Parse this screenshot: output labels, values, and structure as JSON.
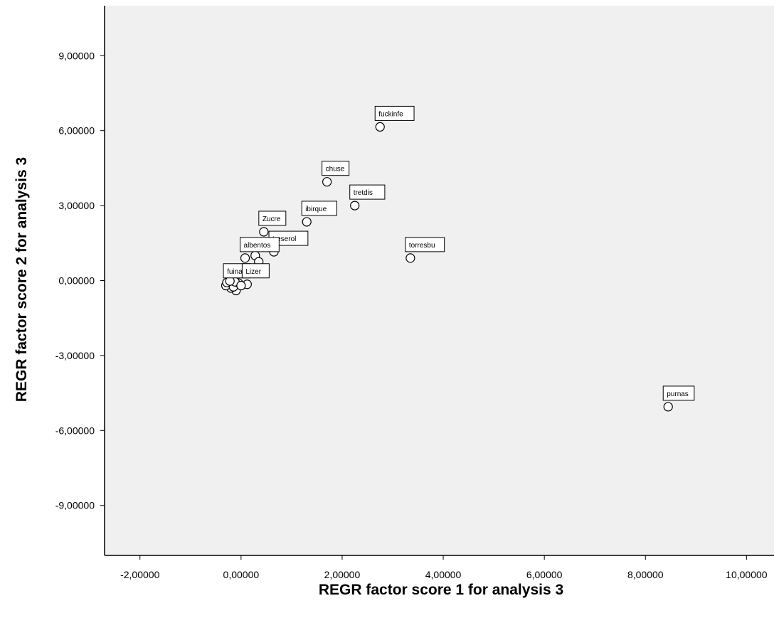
{
  "chart_data": {
    "type": "scatter",
    "xlabel": "REGR factor score   1 for analysis 3",
    "ylabel": "REGR factor score   2 for analysis 3",
    "xlim": [
      -2.7,
      10.6
    ],
    "ylim": [
      -11,
      11
    ],
    "x_ticks": [
      -2,
      0,
      2,
      4,
      6,
      8,
      10
    ],
    "x_tick_labels": [
      "-2,00000",
      "0,00000",
      "2,00000",
      "4,00000",
      "6,00000",
      "8,00000",
      "10,00000"
    ],
    "y_ticks": [
      9,
      6,
      3,
      0,
      -3,
      -6,
      -9
    ],
    "y_tick_labels": [
      "9,00000",
      "6,00000",
      "3,00000",
      "0,00000",
      "-3,00000",
      "-6,00000",
      "-9,00000"
    ],
    "grid": false,
    "plot_background": "#f0f0f0",
    "marker_color": "#000000",
    "points": [
      {
        "x": 2.75,
        "y": 6.15,
        "label": "fuckinfe"
      },
      {
        "x": 1.7,
        "y": 3.95,
        "label": "chuse"
      },
      {
        "x": 2.25,
        "y": 3.0,
        "label": "tretdis"
      },
      {
        "x": 1.3,
        "y": 2.35,
        "label": "ibirque"
      },
      {
        "x": 0.45,
        "y": 1.95,
        "label": "Zucre"
      },
      {
        "x": 3.35,
        "y": 0.9,
        "label": "torresbu"
      },
      {
        "x": 0.65,
        "y": 1.15,
        "label": "treserol"
      },
      {
        "x": 0.08,
        "y": 0.9,
        "label": "albentos"
      },
      {
        "x": -0.25,
        "y": -0.15,
        "label": "fuina"
      },
      {
        "x": 0.12,
        "y": -0.15,
        "label": "Lizer"
      },
      {
        "x": 8.45,
        "y": -5.05,
        "label": "purnas"
      },
      {
        "x": 0.28,
        "y": 1.0,
        "label": ""
      },
      {
        "x": 0.35,
        "y": 0.75,
        "label": ""
      },
      {
        "x": -0.18,
        "y": 0.25,
        "label": ""
      },
      {
        "x": -0.1,
        "y": -0.4,
        "label": ""
      },
      {
        "x": -0.2,
        "y": -0.3,
        "label": ""
      },
      {
        "x": -0.3,
        "y": -0.2,
        "label": ""
      },
      {
        "x": -0.15,
        "y": -0.25,
        "label": ""
      },
      {
        "x": -0.05,
        "y": -0.1,
        "label": ""
      },
      {
        "x": -0.28,
        "y": -0.08,
        "label": ""
      },
      {
        "x": -0.12,
        "y": -0.05,
        "label": ""
      },
      {
        "x": 0.0,
        "y": -0.2,
        "label": ""
      },
      {
        "x": -0.22,
        "y": -0.02,
        "label": ""
      }
    ]
  }
}
